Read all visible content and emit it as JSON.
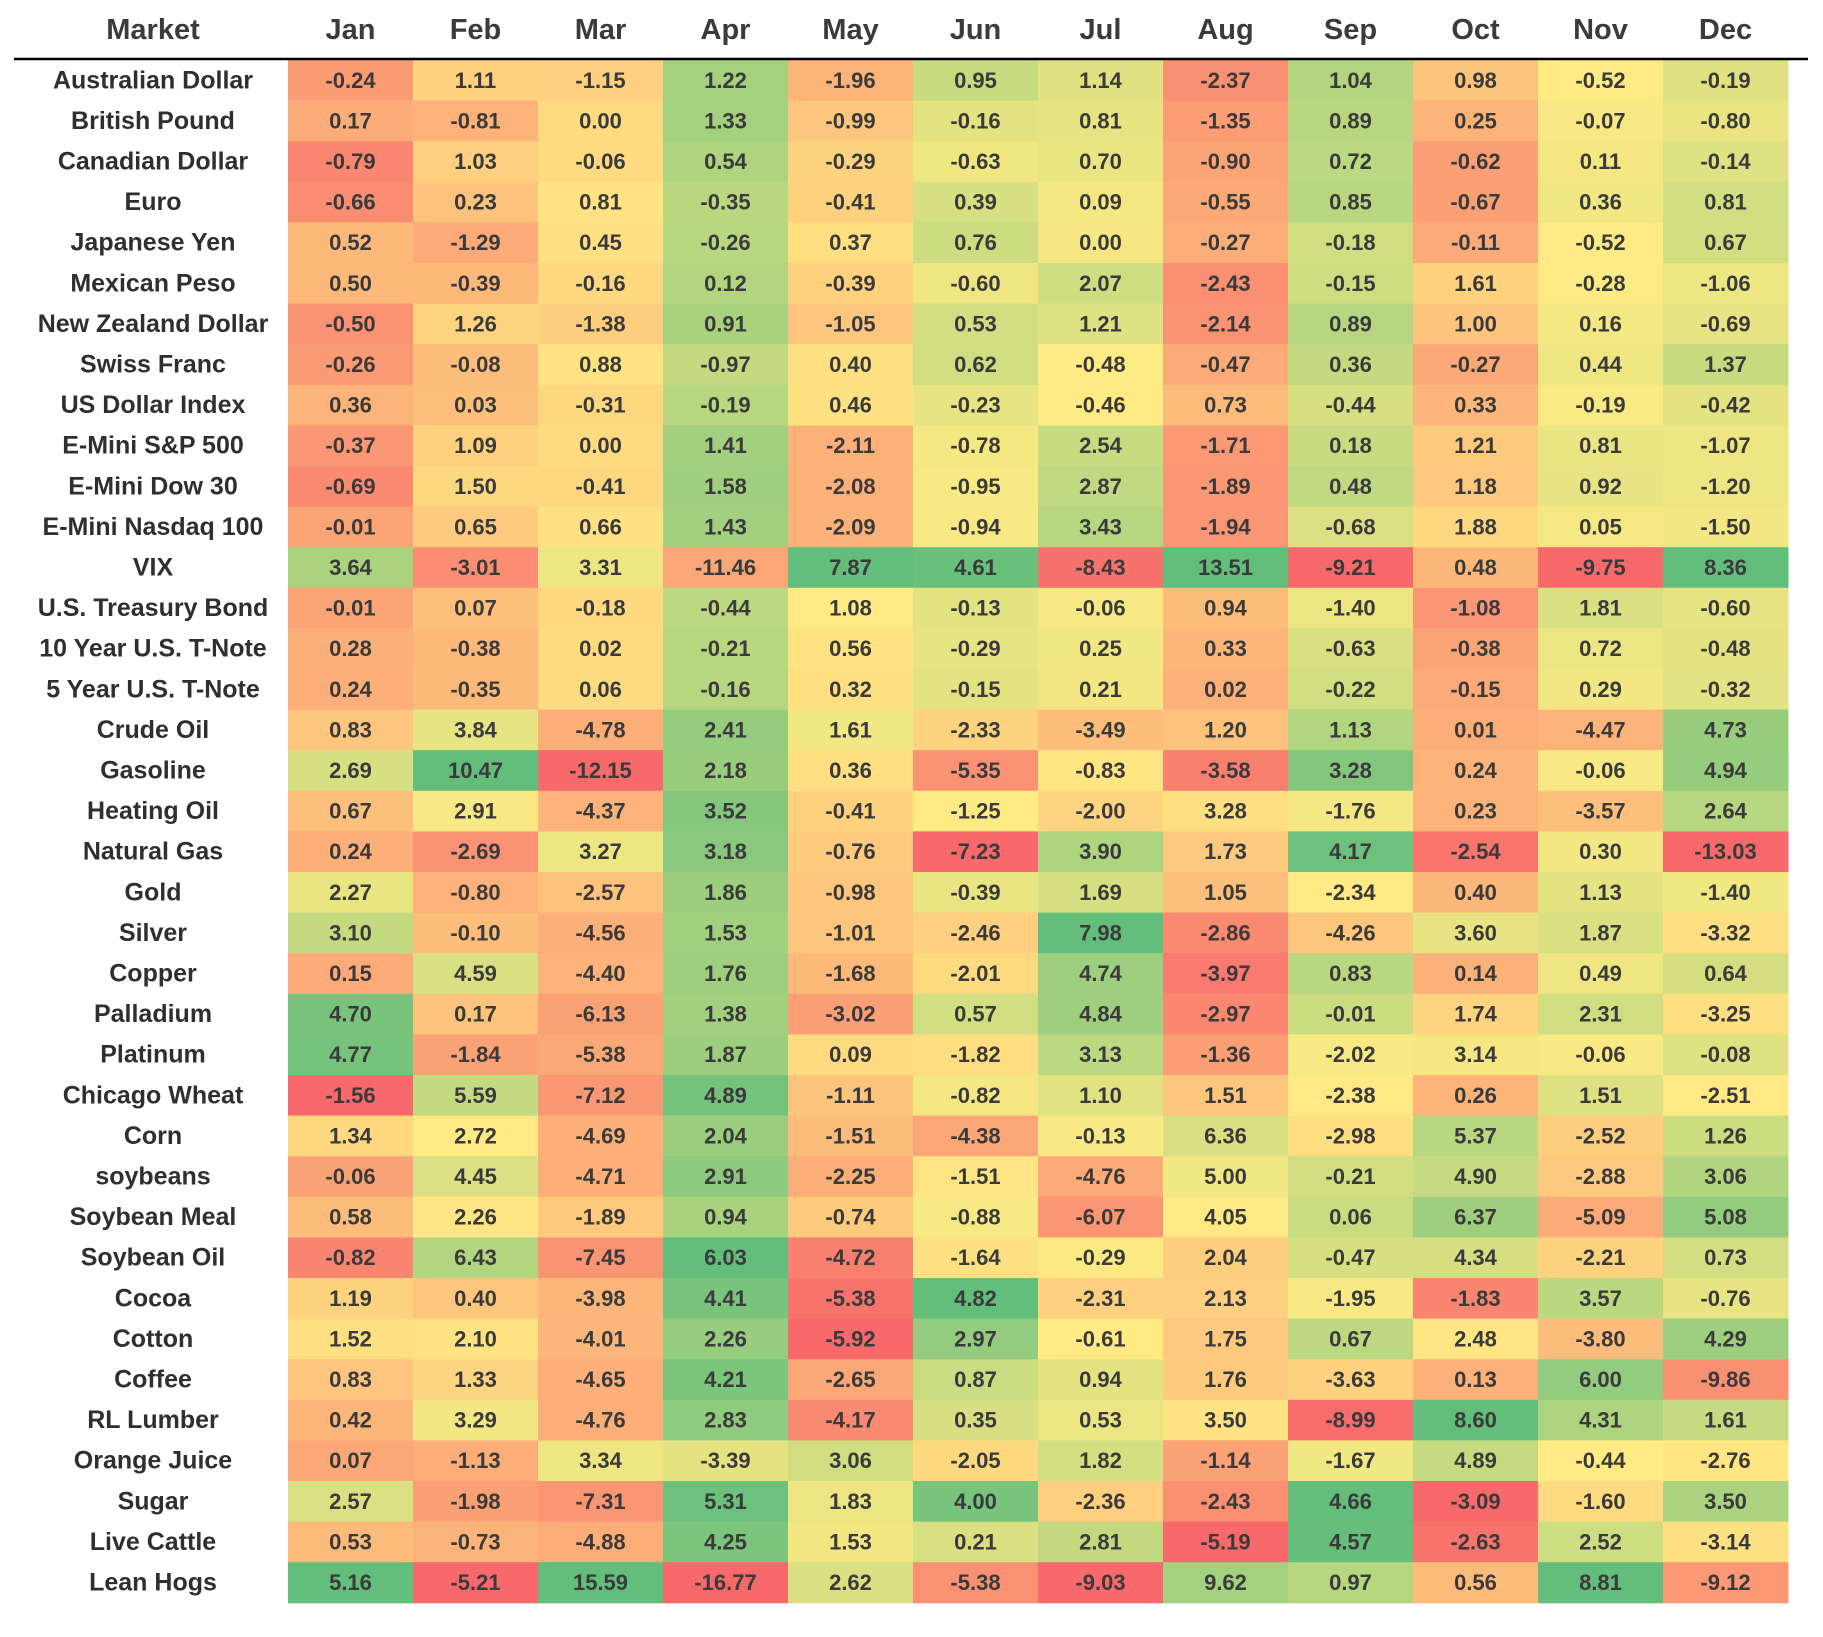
{
  "chart_data": {
    "type": "heatmap",
    "title": "",
    "corner_header": "Market",
    "columns": [
      "Jan",
      "Feb",
      "Mar",
      "Apr",
      "May",
      "Jun",
      "Jul",
      "Aug",
      "Sep",
      "Oct",
      "Nov",
      "Dec"
    ],
    "color_scale": {
      "low": "#f8696b",
      "mid": "#ffeb84",
      "high": "#63be7b",
      "scale": "per-column"
    },
    "rows": [
      {
        "label": "Australian Dollar",
        "values": [
          "-0.24",
          "1.11",
          "-1.15",
          "1.22",
          "-1.96",
          "0.95",
          "1.14",
          "-2.37",
          "1.04",
          "0.98",
          "-0.52",
          "-0.19"
        ]
      },
      {
        "label": "British Pound",
        "values": [
          "0.17",
          "-0.81",
          "0.00",
          "1.33",
          "-0.99",
          "-0.16",
          "0.81",
          "-1.35",
          "0.89",
          "0.25",
          "-0.07",
          "-0.80"
        ]
      },
      {
        "label": "Canadian Dollar",
        "values": [
          "-0.79",
          "1.03",
          "-0.06",
          "0.54",
          "-0.29",
          "-0.63",
          "0.70",
          "-0.90",
          "0.72",
          "-0.62",
          "0.11",
          "-0.14"
        ]
      },
      {
        "label": "Euro",
        "values": [
          "-0.66",
          "0.23",
          "0.81",
          "-0.35",
          "-0.41",
          "0.39",
          "0.09",
          "-0.55",
          "0.85",
          "-0.67",
          "0.36",
          "0.81"
        ]
      },
      {
        "label": "Japanese Yen",
        "values": [
          "0.52",
          "-1.29",
          "0.45",
          "-0.26",
          "0.37",
          "0.76",
          "0.00",
          "-0.27",
          "-0.18",
          "-0.11",
          "-0.52",
          "0.67"
        ]
      },
      {
        "label": "Mexican Peso",
        "values": [
          "0.50",
          "-0.39",
          "-0.16",
          "0.12",
          "-0.39",
          "-0.60",
          "2.07",
          "-2.43",
          "-0.15",
          "1.61",
          "-0.28",
          "-1.06"
        ]
      },
      {
        "label": "New Zealand Dollar",
        "values": [
          "-0.50",
          "1.26",
          "-1.38",
          "0.91",
          "-1.05",
          "0.53",
          "1.21",
          "-2.14",
          "0.89",
          "1.00",
          "0.16",
          "-0.69"
        ]
      },
      {
        "label": "Swiss Franc",
        "values": [
          "-0.26",
          "-0.08",
          "0.88",
          "-0.97",
          "0.40",
          "0.62",
          "-0.48",
          "-0.47",
          "0.36",
          "-0.27",
          "0.44",
          "1.37"
        ]
      },
      {
        "label": "US Dollar Index",
        "values": [
          "0.36",
          "0.03",
          "-0.31",
          "-0.19",
          "0.46",
          "-0.23",
          "-0.46",
          "0.73",
          "-0.44",
          "0.33",
          "-0.19",
          "-0.42"
        ]
      },
      {
        "label": "E-Mini S&P 500",
        "values": [
          "-0.37",
          "1.09",
          "0.00",
          "1.41",
          "-2.11",
          "-0.78",
          "2.54",
          "-1.71",
          "0.18",
          "1.21",
          "0.81",
          "-1.07"
        ]
      },
      {
        "label": "E-Mini Dow 30",
        "values": [
          "-0.69",
          "1.50",
          "-0.41",
          "1.58",
          "-2.08",
          "-0.95",
          "2.87",
          "-1.89",
          "0.48",
          "1.18",
          "0.92",
          "-1.20"
        ]
      },
      {
        "label": "E-Mini Nasdaq 100",
        "values": [
          "-0.01",
          "0.65",
          "0.66",
          "1.43",
          "-2.09",
          "-0.94",
          "3.43",
          "-1.94",
          "-0.68",
          "1.88",
          "0.05",
          "-1.50"
        ]
      },
      {
        "label": "VIX",
        "values": [
          "3.64",
          "-3.01",
          "3.31",
          "-11.46",
          "7.87",
          "4.61",
          "-8.43",
          "13.51",
          "-9.21",
          "0.48",
          "-9.75",
          "8.36"
        ]
      },
      {
        "label": "U.S. Treasury Bond",
        "values": [
          "-0.01",
          "0.07",
          "-0.18",
          "-0.44",
          "1.08",
          "-0.13",
          "-0.06",
          "0.94",
          "-1.40",
          "-1.08",
          "1.81",
          "-0.60"
        ]
      },
      {
        "label": "10 Year U.S. T-Note",
        "values": [
          "0.28",
          "-0.38",
          "0.02",
          "-0.21",
          "0.56",
          "-0.29",
          "0.25",
          "0.33",
          "-0.63",
          "-0.38",
          "0.72",
          "-0.48"
        ]
      },
      {
        "label": "5 Year U.S. T-Note",
        "values": [
          "0.24",
          "-0.35",
          "0.06",
          "-0.16",
          "0.32",
          "-0.15",
          "0.21",
          "0.02",
          "-0.22",
          "-0.15",
          "0.29",
          "-0.32"
        ]
      },
      {
        "label": "Crude Oil",
        "values": [
          "0.83",
          "3.84",
          "-4.78",
          "2.41",
          "1.61",
          "-2.33",
          "-3.49",
          "1.20",
          "1.13",
          "0.01",
          "-4.47",
          "4.73"
        ]
      },
      {
        "label": "Gasoline",
        "values": [
          "2.69",
          "10.47",
          "-12.15",
          "2.18",
          "0.36",
          "-5.35",
          "-0.83",
          "-3.58",
          "3.28",
          "0.24",
          "-0.06",
          "4.94"
        ]
      },
      {
        "label": "Heating Oil",
        "values": [
          "0.67",
          "2.91",
          "-4.37",
          "3.52",
          "-0.41",
          "-1.25",
          "-2.00",
          "3.28",
          "-1.76",
          "0.23",
          "-3.57",
          "2.64"
        ]
      },
      {
        "label": "Natural Gas",
        "values": [
          "0.24",
          "-2.69",
          "3.27",
          "3.18",
          "-0.76",
          "-7.23",
          "3.90",
          "1.73",
          "4.17",
          "-2.54",
          "0.30",
          "-13.03"
        ]
      },
      {
        "label": "Gold",
        "values": [
          "2.27",
          "-0.80",
          "-2.57",
          "1.86",
          "-0.98",
          "-0.39",
          "1.69",
          "1.05",
          "-2.34",
          "0.40",
          "1.13",
          "-1.40"
        ]
      },
      {
        "label": "Silver",
        "values": [
          "3.10",
          "-0.10",
          "-4.56",
          "1.53",
          "-1.01",
          "-2.46",
          "7.98",
          "-2.86",
          "-4.26",
          "3.60",
          "1.87",
          "-3.32"
        ]
      },
      {
        "label": "Copper",
        "values": [
          "0.15",
          "4.59",
          "-4.40",
          "1.76",
          "-1.68",
          "-2.01",
          "4.74",
          "-3.97",
          "0.83",
          "0.14",
          "0.49",
          "0.64"
        ]
      },
      {
        "label": "Palladium",
        "values": [
          "4.70",
          "0.17",
          "-6.13",
          "1.38",
          "-3.02",
          "0.57",
          "4.84",
          "-2.97",
          "-0.01",
          "1.74",
          "2.31",
          "-3.25"
        ]
      },
      {
        "label": "Platinum",
        "values": [
          "4.77",
          "-1.84",
          "-5.38",
          "1.87",
          "0.09",
          "-1.82",
          "3.13",
          "-1.36",
          "-2.02",
          "3.14",
          "-0.06",
          "-0.08"
        ]
      },
      {
        "label": "Chicago Wheat",
        "values": [
          "-1.56",
          "5.59",
          "-7.12",
          "4.89",
          "-1.11",
          "-0.82",
          "1.10",
          "1.51",
          "-2.38",
          "0.26",
          "1.51",
          "-2.51"
        ]
      },
      {
        "label": "Corn",
        "values": [
          "1.34",
          "2.72",
          "-4.69",
          "2.04",
          "-1.51",
          "-4.38",
          "-0.13",
          "6.36",
          "-2.98",
          "5.37",
          "-2.52",
          "1.26"
        ]
      },
      {
        "label": "soybeans",
        "values": [
          "-0.06",
          "4.45",
          "-4.71",
          "2.91",
          "-2.25",
          "-1.51",
          "-4.76",
          "5.00",
          "-0.21",
          "4.90",
          "-2.88",
          "3.06"
        ]
      },
      {
        "label": "Soybean Meal",
        "values": [
          "0.58",
          "2.26",
          "-1.89",
          "0.94",
          "-0.74",
          "-0.88",
          "-6.07",
          "4.05",
          "0.06",
          "6.37",
          "-5.09",
          "5.08"
        ]
      },
      {
        "label": "Soybean Oil",
        "values": [
          "-0.82",
          "6.43",
          "-7.45",
          "6.03",
          "-4.72",
          "-1.64",
          "-0.29",
          "2.04",
          "-0.47",
          "4.34",
          "-2.21",
          "0.73"
        ]
      },
      {
        "label": "Cocoa",
        "values": [
          "1.19",
          "0.40",
          "-3.98",
          "4.41",
          "-5.38",
          "4.82",
          "-2.31",
          "2.13",
          "-1.95",
          "-1.83",
          "3.57",
          "-0.76"
        ]
      },
      {
        "label": "Cotton",
        "values": [
          "1.52",
          "2.10",
          "-4.01",
          "2.26",
          "-5.92",
          "2.97",
          "-0.61",
          "1.75",
          "0.67",
          "2.48",
          "-3.80",
          "4.29"
        ]
      },
      {
        "label": "Coffee",
        "values": [
          "0.83",
          "1.33",
          "-4.65",
          "4.21",
          "-2.65",
          "0.87",
          "0.94",
          "1.76",
          "-3.63",
          "0.13",
          "6.00",
          "-9.86"
        ]
      },
      {
        "label": "RL Lumber",
        "values": [
          "0.42",
          "3.29",
          "-4.76",
          "2.83",
          "-4.17",
          "0.35",
          "0.53",
          "3.50",
          "-8.99",
          "8.60",
          "4.31",
          "1.61"
        ]
      },
      {
        "label": "Orange Juice",
        "values": [
          "0.07",
          "-1.13",
          "3.34",
          "-3.39",
          "3.06",
          "-2.05",
          "1.82",
          "-1.14",
          "-1.67",
          "4.89",
          "-0.44",
          "-2.76"
        ]
      },
      {
        "label": "Sugar",
        "values": [
          "2.57",
          "-1.98",
          "-7.31",
          "5.31",
          "1.83",
          "4.00",
          "-2.36",
          "-2.43",
          "4.66",
          "-3.09",
          "-1.60",
          "3.50"
        ]
      },
      {
        "label": "Live Cattle",
        "values": [
          "0.53",
          "-0.73",
          "-4.88",
          "4.25",
          "1.53",
          "0.21",
          "2.81",
          "-5.19",
          "4.57",
          "-2.63",
          "2.52",
          "-3.14"
        ]
      },
      {
        "label": "Lean Hogs",
        "values": [
          "5.16",
          "-5.21",
          "15.59",
          "-16.77",
          "2.62",
          "-5.38",
          "-9.03",
          "9.62",
          "0.97",
          "0.56",
          "8.81",
          "-9.12"
        ]
      }
    ]
  }
}
